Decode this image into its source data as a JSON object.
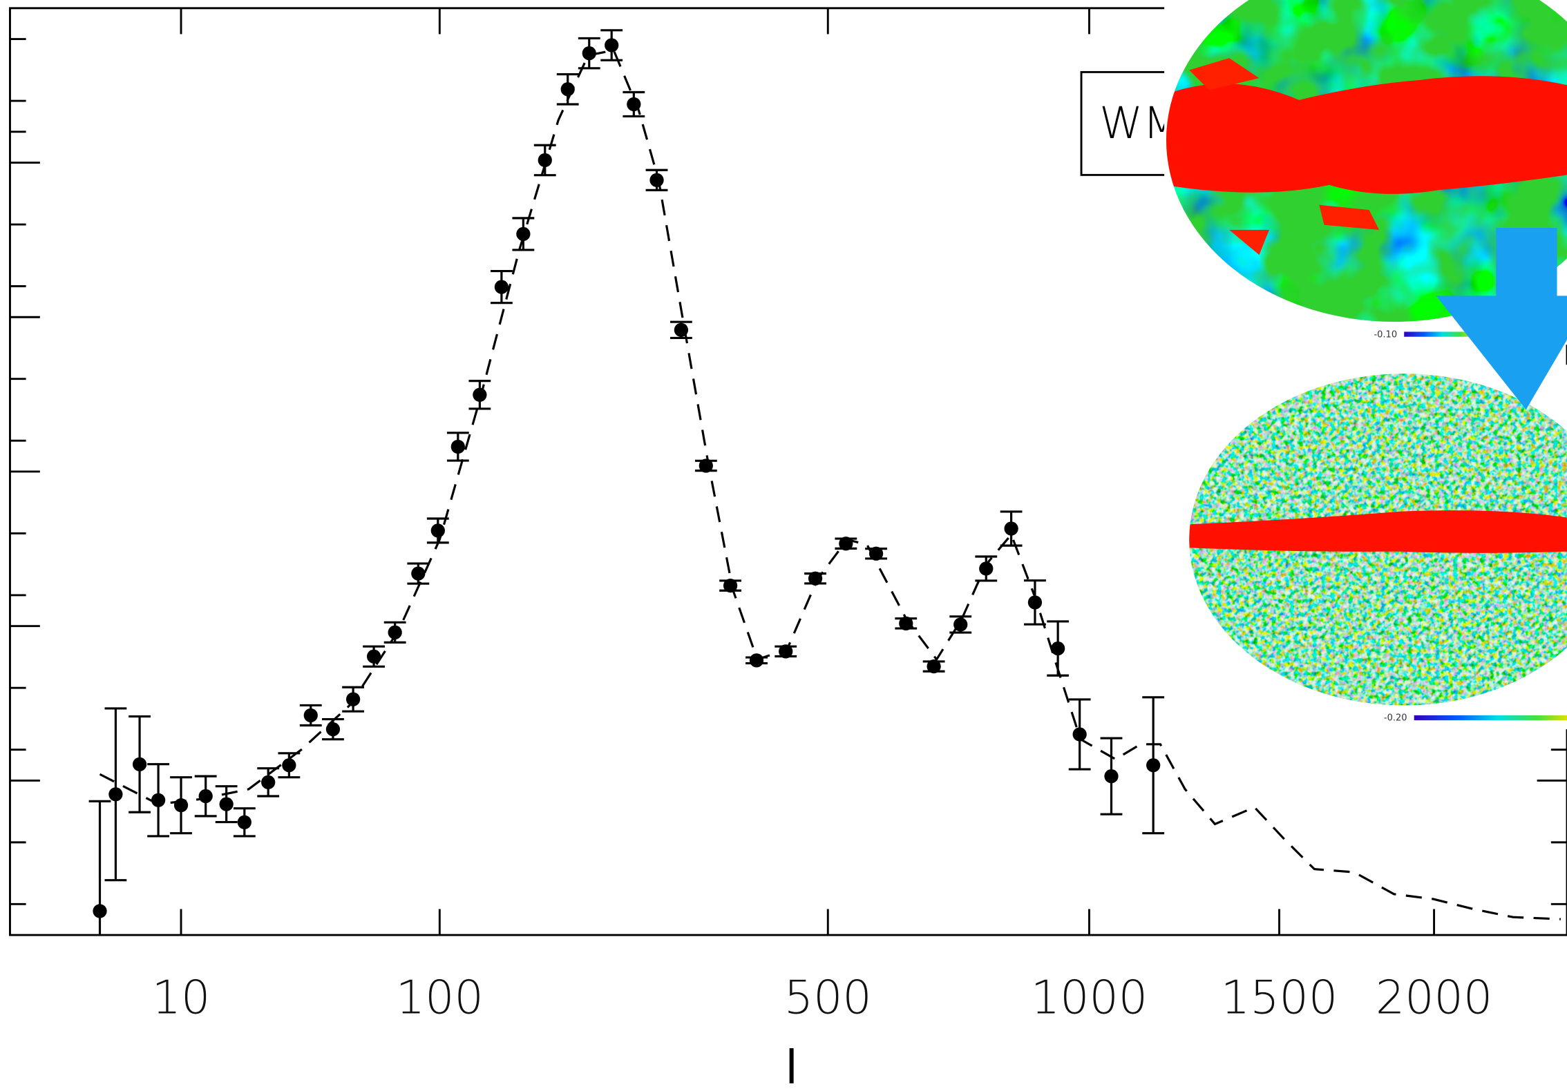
{
  "chart_data": {
    "type": "scatter",
    "x_label": "l",
    "legend_text": "WM",
    "x_scale": "power",
    "x_exponent": 0.4,
    "xlim": [
      0,
      2500
    ],
    "ylim": [
      0,
      6000
    ],
    "xticks": [
      10,
      100,
      500,
      1000,
      1500,
      2000
    ],
    "yticks": [
      200,
      600,
      1000,
      1200,
      1600,
      2000,
      2200,
      2600,
      3000,
      3200,
      3600,
      4000,
      4200,
      4600,
      5000,
      5200,
      5400,
      5800
    ],
    "color": "#000000",
    "data": {
      "x": [
        2,
        3,
        5,
        7,
        10,
        14,
        18,
        22,
        28,
        34,
        41,
        49,
        57,
        66,
        76,
        88,
        99,
        111,
        125,
        140,
        156,
        173,
        192,
        211,
        232,
        254,
        278,
        305,
        334,
        364,
        398,
        438,
        481,
        528,
        577,
        628,
        678,
        728,
        778,
        829,
        879,
        929,
        978,
        1052,
        1155
      ],
      "values": [
        155,
        911,
        1105,
        873,
        840,
        899,
        847,
        730,
        989,
        1099,
        1422,
        1332,
        1526,
        1803,
        1959,
        2340,
        2618,
        3161,
        3497,
        4195,
        4538,
        5016,
        5475,
        5708,
        5760,
        5378,
        4887,
        3917,
        3038,
        2262,
        1778,
        1836,
        2308,
        2534,
        2469,
        2017,
        1739,
        2010,
        2372,
        2631,
        2153,
        1855,
        1299,
        1028,
        1099
      ],
      "errors": [
        711,
        556,
        310,
        233,
        181,
        129,
        116,
        90,
        90,
        78,
        65,
        65,
        78,
        65,
        65,
        65,
        78,
        90,
        90,
        103,
        103,
        97,
        97,
        97,
        97,
        78,
        65,
        52,
        32,
        32,
        19,
        32,
        32,
        32,
        32,
        32,
        32,
        52,
        78,
        110,
        142,
        175,
        226,
        246,
        440
      ]
    },
    "model": {
      "x": [
        2,
        7,
        13,
        23,
        38,
        56,
        78,
        100,
        125,
        153,
        184,
        210,
        234,
        259,
        280,
        307,
        336,
        367,
        399,
        440,
        484,
        530,
        562,
        629,
        683,
        730,
        778,
        829,
        881,
        929,
        980,
        1062,
        1123,
        1173,
        1237,
        1317,
        1428,
        1515,
        1606,
        1731,
        1862,
        1998,
        2141,
        2289,
        2475
      ],
      "values": [
        1041,
        847,
        879,
        944,
        1202,
        1493,
        1978,
        2560,
        3465,
        4434,
        5275,
        5695,
        5727,
        5339,
        4887,
        3982,
        3077,
        2237,
        1784,
        1849,
        2301,
        2560,
        2527,
        2043,
        1784,
        2043,
        2398,
        2592,
        2172,
        1719,
        1267,
        1138,
        1235,
        1235,
        944,
        718,
        827,
        621,
        427,
        407,
        265,
        233,
        168,
        116,
        103
      ],
      "line_style": "dashed"
    }
  },
  "overlay": {
    "colorbar_labels": [
      "-0.10",
      "-0.20"
    ]
  }
}
